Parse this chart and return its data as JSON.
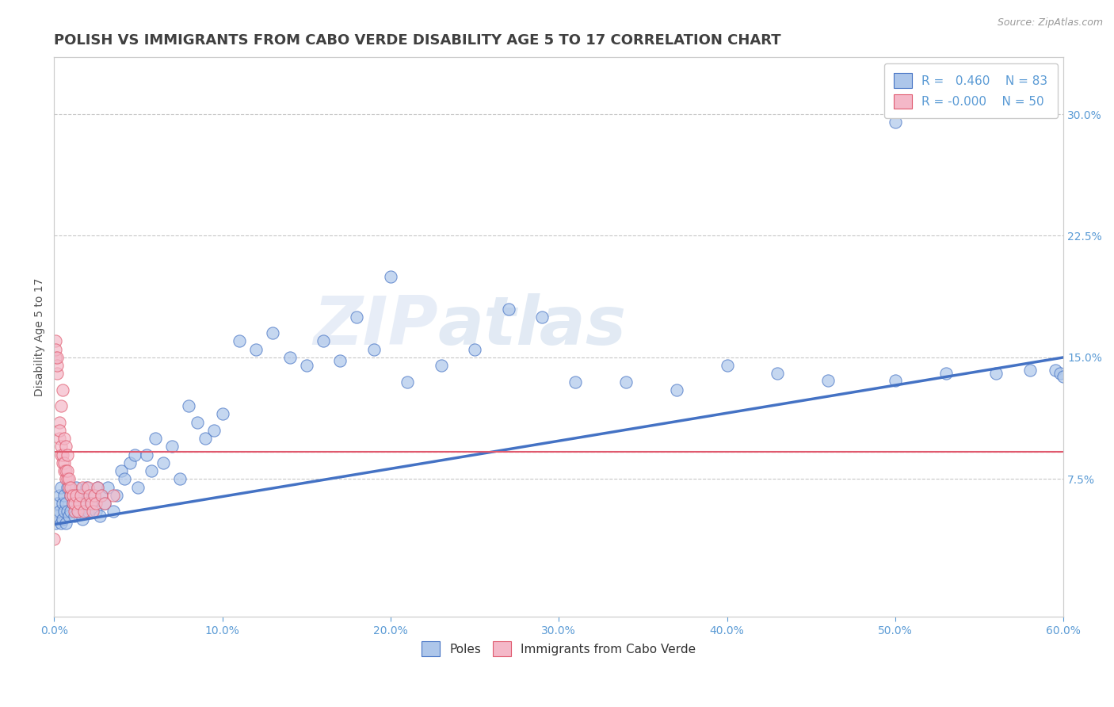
{
  "title": "POLISH VS IMMIGRANTS FROM CABO VERDE DISABILITY AGE 5 TO 17 CORRELATION CHART",
  "source": "Source: ZipAtlas.com",
  "ylabel": "Disability Age 5 to 17",
  "xmin": 0.0,
  "xmax": 0.6,
  "ymin": -0.01,
  "ymax": 0.335,
  "xticks": [
    0.0,
    0.1,
    0.2,
    0.3,
    0.4,
    0.5,
    0.6
  ],
  "yticks_right": [
    0.075,
    0.15,
    0.225,
    0.3
  ],
  "ytick_labels_right": [
    "7.5%",
    "15.0%",
    "22.5%",
    "30.0%"
  ],
  "xtick_labels": [
    "0.0%",
    "10.0%",
    "20.0%",
    "30.0%",
    "40.0%",
    "50.0%",
    "60.0%"
  ],
  "blue_color": "#adc6ea",
  "pink_color": "#f4b8c8",
  "blue_line_color": "#4472c4",
  "pink_line_color": "#e05a6e",
  "blue_R": 0.46,
  "blue_N": 83,
  "pink_R": -0.0,
  "pink_N": 50,
  "legend_label_blue": "Poles",
  "legend_label_pink": "Immigrants from Cabo Verde",
  "watermark_zip": "ZIP",
  "watermark_atlas": "atlas",
  "title_color": "#404040",
  "axis_color": "#5b9bd5",
  "grid_color": "#c8c8c8",
  "blue_scatter_x": [
    0.001,
    0.002,
    0.002,
    0.003,
    0.003,
    0.004,
    0.004,
    0.005,
    0.005,
    0.006,
    0.006,
    0.007,
    0.007,
    0.008,
    0.008,
    0.009,
    0.01,
    0.01,
    0.011,
    0.012,
    0.013,
    0.014,
    0.015,
    0.016,
    0.017,
    0.018,
    0.019,
    0.02,
    0.022,
    0.024,
    0.025,
    0.026,
    0.027,
    0.028,
    0.03,
    0.032,
    0.035,
    0.037,
    0.04,
    0.042,
    0.045,
    0.048,
    0.05,
    0.055,
    0.058,
    0.06,
    0.065,
    0.07,
    0.075,
    0.08,
    0.085,
    0.09,
    0.095,
    0.1,
    0.11,
    0.12,
    0.13,
    0.14,
    0.15,
    0.16,
    0.17,
    0.18,
    0.19,
    0.2,
    0.21,
    0.23,
    0.25,
    0.27,
    0.29,
    0.31,
    0.34,
    0.37,
    0.4,
    0.43,
    0.46,
    0.5,
    0.53,
    0.56,
    0.58,
    0.595,
    0.598,
    0.6,
    0.5
  ],
  "blue_scatter_y": [
    0.048,
    0.06,
    0.052,
    0.065,
    0.055,
    0.07,
    0.048,
    0.06,
    0.05,
    0.055,
    0.065,
    0.06,
    0.048,
    0.055,
    0.07,
    0.052,
    0.065,
    0.055,
    0.06,
    0.052,
    0.07,
    0.065,
    0.055,
    0.06,
    0.05,
    0.065,
    0.07,
    0.055,
    0.06,
    0.065,
    0.055,
    0.07,
    0.052,
    0.065,
    0.06,
    0.07,
    0.055,
    0.065,
    0.08,
    0.075,
    0.085,
    0.09,
    0.07,
    0.09,
    0.08,
    0.1,
    0.085,
    0.095,
    0.075,
    0.12,
    0.11,
    0.1,
    0.105,
    0.115,
    0.16,
    0.155,
    0.165,
    0.15,
    0.145,
    0.16,
    0.148,
    0.175,
    0.155,
    0.2,
    0.135,
    0.145,
    0.155,
    0.18,
    0.175,
    0.135,
    0.135,
    0.13,
    0.145,
    0.14,
    0.136,
    0.136,
    0.14,
    0.14,
    0.142,
    0.142,
    0.14,
    0.138,
    0.295
  ],
  "pink_scatter_x": [
    0.0,
    0.001,
    0.001,
    0.001,
    0.002,
    0.002,
    0.002,
    0.003,
    0.003,
    0.003,
    0.004,
    0.004,
    0.004,
    0.005,
    0.005,
    0.005,
    0.006,
    0.006,
    0.006,
    0.007,
    0.007,
    0.007,
    0.008,
    0.008,
    0.008,
    0.009,
    0.009,
    0.01,
    0.01,
    0.011,
    0.011,
    0.012,
    0.012,
    0.013,
    0.014,
    0.015,
    0.016,
    0.017,
    0.018,
    0.019,
    0.02,
    0.021,
    0.022,
    0.023,
    0.024,
    0.025,
    0.026,
    0.028,
    0.03,
    0.035
  ],
  "pink_scatter_y": [
    0.038,
    0.15,
    0.16,
    0.155,
    0.14,
    0.145,
    0.15,
    0.1,
    0.11,
    0.105,
    0.09,
    0.095,
    0.12,
    0.085,
    0.09,
    0.13,
    0.08,
    0.085,
    0.1,
    0.075,
    0.08,
    0.095,
    0.075,
    0.08,
    0.09,
    0.07,
    0.075,
    0.065,
    0.07,
    0.06,
    0.065,
    0.055,
    0.06,
    0.065,
    0.055,
    0.06,
    0.065,
    0.07,
    0.055,
    0.06,
    0.07,
    0.065,
    0.06,
    0.055,
    0.065,
    0.06,
    0.07,
    0.065,
    0.06,
    0.065
  ],
  "blue_trendline_x": [
    0.0,
    0.6
  ],
  "blue_trendline_y": [
    0.047,
    0.15
  ],
  "pink_trendline_x": [
    0.0,
    0.035
  ],
  "pink_trendline_y": [
    0.092,
    0.092
  ],
  "dashed_hline_y": 0.092,
  "title_fontsize": 13,
  "label_fontsize": 10,
  "tick_fontsize": 10,
  "legend_fontsize": 11,
  "marker_size": 120
}
